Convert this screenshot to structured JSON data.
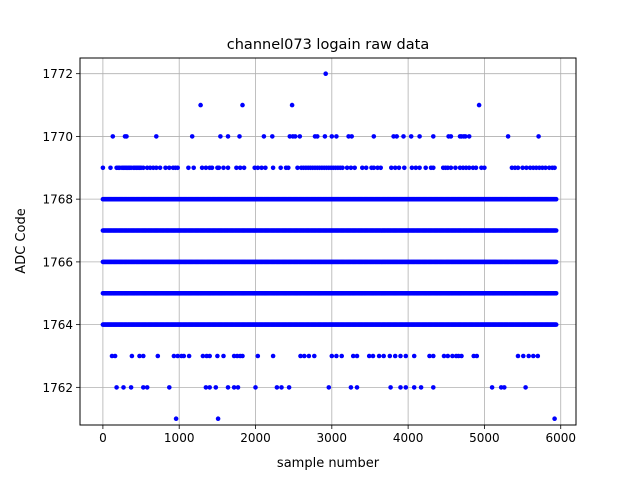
{
  "chart_data": {
    "type": "scatter",
    "title": "channel073 logain raw data",
    "xlabel": "sample number",
    "ylabel": "ADC Code",
    "xlim": [
      -300,
      6200
    ],
    "ylim": [
      1760.8,
      1772.5
    ],
    "xticks": [
      0,
      1000,
      2000,
      3000,
      4000,
      5000,
      6000
    ],
    "yticks": [
      1762,
      1764,
      1766,
      1768,
      1770,
      1772
    ],
    "xtick_labels": [
      "0",
      "1000",
      "2000",
      "3000",
      "4000",
      "5000",
      "6000"
    ],
    "ytick_labels": [
      "1762",
      "1764",
      "1766",
      "1768",
      "1770",
      "1772"
    ],
    "grid": true,
    "series": [
      {
        "color": "#0000ff",
        "marker": "circle",
        "x_range": [
          0,
          5940
        ],
        "dense_levels": [
          1764,
          1765,
          1766,
          1767,
          1768
        ],
        "sparse_levels": [
          {
            "y": 1769,
            "x": [
              0,
              100,
              180,
              200,
              220,
              250,
              270,
              290,
              310,
              330,
              350,
              370,
              400,
              420,
              440,
              460,
              480,
              500,
              530,
              580,
              620,
              660,
              700,
              750,
              820,
              870,
              920,
              950,
              980,
              1120,
              1190,
              1300,
              1350,
              1400,
              1430,
              1500,
              1520,
              1580,
              1640,
              1750,
              1800,
              1850,
              1990,
              2030,
              2080,
              2130,
              2230,
              2330,
              2400,
              2430,
              2550,
              2600,
              2630,
              2660,
              2690,
              2720,
              2750,
              2780,
              2810,
              2840,
              2870,
              2900,
              2930,
              2960,
              2990,
              3020,
              3050,
              3080,
              3110,
              3140,
              3200,
              3250,
              3300,
              3400,
              3450,
              3520,
              3550,
              3600,
              3640,
              3780,
              3830,
              3880,
              3950,
              4050,
              4100,
              4150,
              4230,
              4300,
              4330,
              4460,
              4490,
              4520,
              4560,
              4620,
              4680,
              4720,
              4760,
              4800,
              4850,
              4890,
              4960,
              5000,
              5360,
              5400,
              5440,
              5500,
              5550,
              5600,
              5640,
              5680,
              5720,
              5760,
              5800,
              5850,
              5890,
              5920
            ]
          },
          {
            "y": 1770,
            "x": [
              130,
              290,
              310,
              700,
              1170,
              1540,
              1640,
              1790,
              2110,
              2220,
              2450,
              2490,
              2520,
              2580,
              2780,
              2810,
              2910,
              3000,
              3060,
              3220,
              3260,
              3550,
              3810,
              3850,
              3940,
              4040,
              4150,
              4330,
              4530,
              4560,
              4680,
              4700,
              4730,
              4750,
              4800,
              5310,
              5710
            ]
          },
          {
            "y": 1771,
            "x": [
              1280,
              1830,
              2480,
              4930
            ]
          },
          {
            "y": 1772,
            "x": [
              2920
            ]
          },
          {
            "y": 1763,
            "x": [
              120,
              160,
              380,
              480,
              530,
              720,
              930,
              980,
              1030,
              1060,
              1130,
              1310,
              1360,
              1400,
              1500,
              1580,
              1720,
              1760,
              1800,
              1830,
              2030,
              2230,
              2590,
              2640,
              2700,
              2770,
              3000,
              3060,
              3130,
              3280,
              3330,
              3490,
              3540,
              3620,
              3680,
              3760,
              3830,
              3900,
              3970,
              4080,
              4280,
              4330,
              4470,
              4520,
              4580,
              4630,
              4660,
              4700,
              4860,
              4900,
              5440,
              5510,
              5580,
              5640,
              5700
            ]
          },
          {
            "y": 1762,
            "x": [
              180,
              270,
              370,
              530,
              580,
              870,
              1350,
              1400,
              1480,
              1640,
              1720,
              1770,
              2000,
              2280,
              2340,
              2440,
              2960,
              3250,
              3330,
              3770,
              3900,
              3970,
              4080,
              4170,
              4330,
              5100,
              5220,
              5260,
              5540
            ]
          },
          {
            "y": 1761,
            "x": [
              960,
              1510,
              5920
            ]
          }
        ]
      }
    ]
  }
}
